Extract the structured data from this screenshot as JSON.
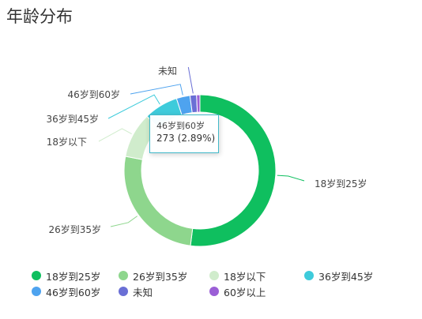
{
  "page": {
    "title": "年龄分布"
  },
  "chart_data": {
    "type": "pie",
    "title": "年龄分布",
    "categories": [
      "18岁到25岁",
      "26岁到35岁",
      "18岁以下",
      "36岁到45岁",
      "46岁到60岁",
      "未知",
      "60岁以上"
    ],
    "values": [
      52.0,
      26.0,
      9.7,
      7.3,
      2.89,
      1.4,
      0.71
    ],
    "colors": [
      "#0fbf5f",
      "#8ed68d",
      "#d0eccc",
      "#3ecbdb",
      "#4ea3ef",
      "#6a6fd5",
      "#9b5fd6"
    ],
    "legend_position": "bottom"
  },
  "tooltip": {
    "name": "46岁到60岁",
    "value_text": "273 (2.89%)"
  }
}
